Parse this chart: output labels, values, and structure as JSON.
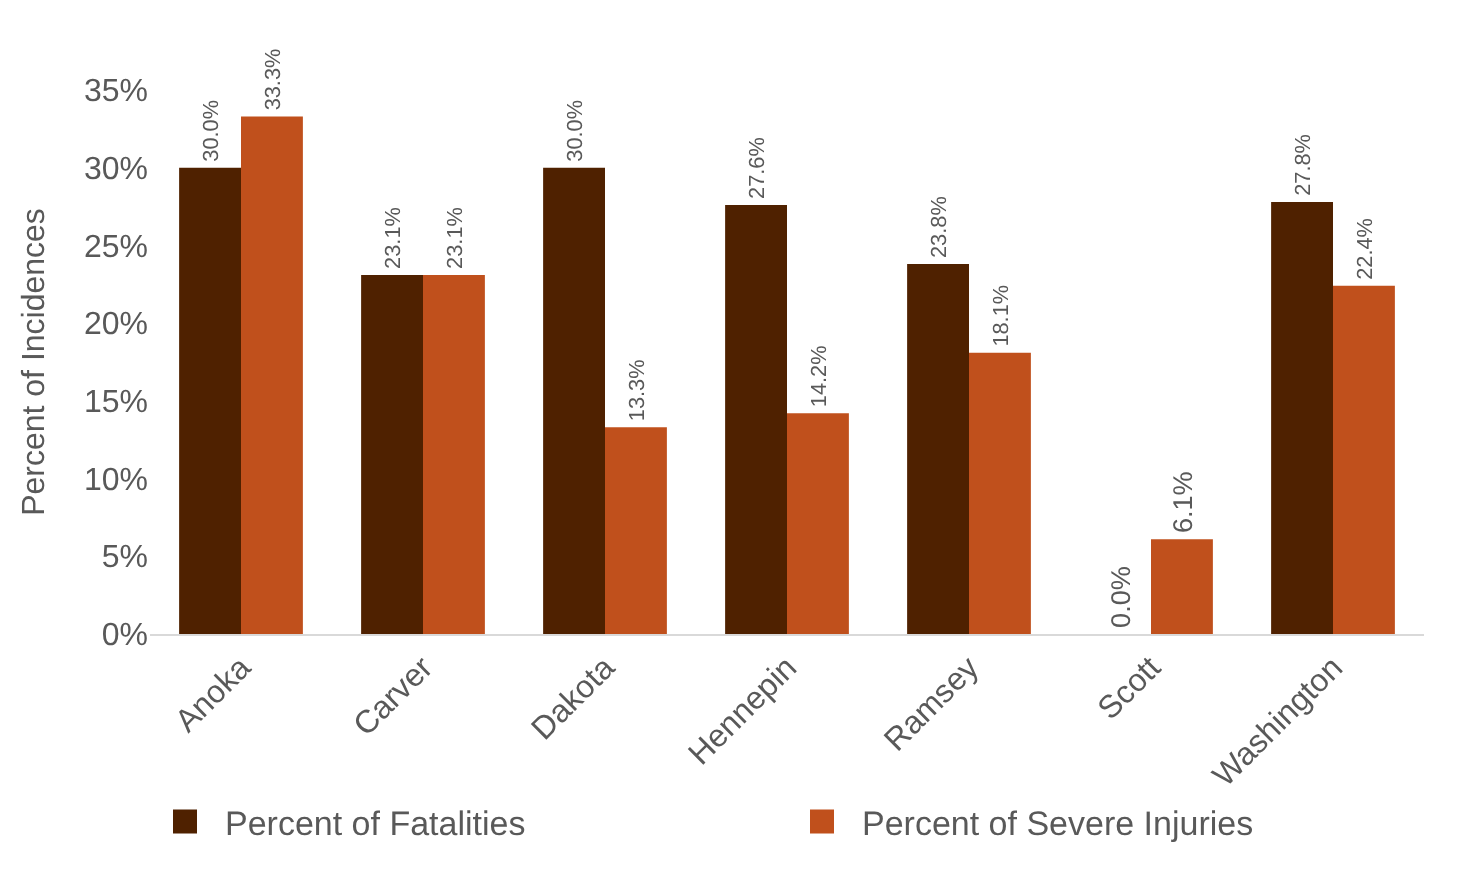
{
  "chart_data": {
    "type": "bar",
    "ylabel": "Percent of Incidences",
    "categories": [
      "Anoka",
      "Carver",
      "Dakota",
      "Hennepin",
      "Ramsey",
      "Scott",
      "Washington"
    ],
    "series": [
      {
        "name": "Percent of Fatalities",
        "color": "#4f2100",
        "values": [
          30.0,
          23.1,
          30.0,
          27.6,
          23.8,
          0.0,
          27.8
        ],
        "value_labels": [
          "30.0%",
          "23.1%",
          "30.0%",
          "27.6%",
          "23.8%",
          "0.0%",
          "27.8%"
        ]
      },
      {
        "name": "Percent of Severe Injuries",
        "color": "#c0501c",
        "values": [
          33.3,
          23.1,
          13.3,
          14.2,
          18.1,
          6.1,
          22.4
        ],
        "value_labels": [
          "33.3%",
          "23.1%",
          "13.3%",
          "14.2%",
          "18.1%",
          "6.1%",
          "22.4%"
        ]
      }
    ],
    "ylim": [
      0,
      35
    ],
    "yticks": [
      {
        "value": 0,
        "label": "0%"
      },
      {
        "value": 5,
        "label": "5%"
      },
      {
        "value": 10,
        "label": "10%"
      },
      {
        "value": 15,
        "label": "15%"
      },
      {
        "value": 20,
        "label": "20%"
      },
      {
        "value": 25,
        "label": "25%"
      },
      {
        "value": 30,
        "label": "30%"
      },
      {
        "value": 35,
        "label": "35%"
      }
    ],
    "legend": "bottom"
  }
}
